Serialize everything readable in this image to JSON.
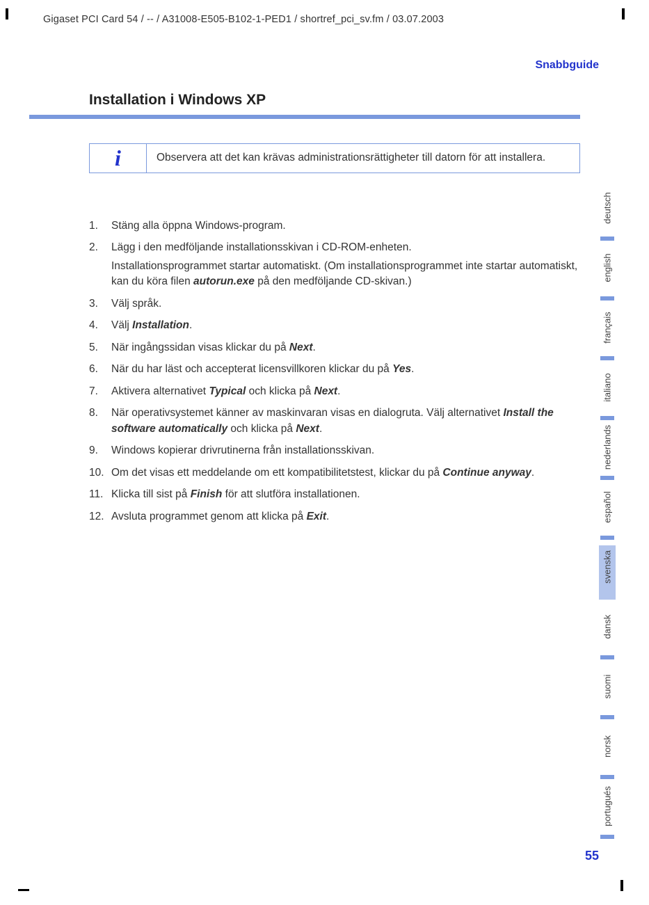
{
  "header": {
    "line": "Gigaset PCI Card 54 / -- / A31008-E505-B102-1-PED1 / shortref_pci_sv.fm / 03.07.2003"
  },
  "doc_title": "Snabbguide",
  "section_heading": "Installation i Windows XP",
  "info": {
    "icon": "i",
    "text": "Observera att det kan krävas administrationsrättigheter till datorn för att installera."
  },
  "steps": [
    {
      "num": "1.",
      "parts": [
        {
          "t": "Stäng alla öppna Windows-program."
        }
      ]
    },
    {
      "num": "2.",
      "parts": [
        {
          "t": "Lägg i den medföljande installationsskivan i CD-ROM-enheten."
        },
        {
          "rich": [
            {
              "t": "Installationsprogrammet startar automatiskt. (Om installationsprogrammet inte startar automatiskt, kan du köra filen "
            },
            {
              "t": "autorun.exe",
              "bi": true
            },
            {
              "t": " på den medföljande CD-skivan.)"
            }
          ]
        }
      ]
    },
    {
      "num": "3.",
      "parts": [
        {
          "t": "Välj språk."
        }
      ]
    },
    {
      "num": "4.",
      "parts": [
        {
          "rich": [
            {
              "t": "Välj "
            },
            {
              "t": "Installation",
              "bi": true
            },
            {
              "t": "."
            }
          ]
        }
      ]
    },
    {
      "num": "5.",
      "parts": [
        {
          "rich": [
            {
              "t": "När ingångssidan visas klickar du på "
            },
            {
              "t": "Next",
              "bi": true
            },
            {
              "t": "."
            }
          ]
        }
      ]
    },
    {
      "num": "6.",
      "parts": [
        {
          "rich": [
            {
              "t": "När du har läst och accepterat licensvillkoren klickar du på "
            },
            {
              "t": "Yes",
              "bi": true
            },
            {
              "t": "."
            }
          ]
        }
      ]
    },
    {
      "num": "7.",
      "parts": [
        {
          "rich": [
            {
              "t": "Aktivera alternativet "
            },
            {
              "t": "Typical",
              "bi": true
            },
            {
              "t": " och klicka på "
            },
            {
              "t": "Next",
              "bi": true
            },
            {
              "t": "."
            }
          ]
        }
      ]
    },
    {
      "num": "8.",
      "parts": [
        {
          "rich": [
            {
              "t": "När operativsystemet känner av maskinvaran visas en dialogruta. Välj alternativet "
            },
            {
              "t": "Install the software automatically",
              "bi": true
            },
            {
              "t": " och klicka på "
            },
            {
              "t": "Next",
              "bi": true
            },
            {
              "t": "."
            }
          ]
        }
      ]
    },
    {
      "num": "9.",
      "parts": [
        {
          "t": "Windows kopierar drivrutinerna från installationsskivan."
        }
      ]
    },
    {
      "num": "10.",
      "parts": [
        {
          "rich": [
            {
              "t": "Om det visas ett meddelande om ett kompatibilitetstest, klickar du på "
            },
            {
              "t": "Continue anyway",
              "bi": true
            },
            {
              "t": "."
            }
          ]
        }
      ]
    },
    {
      "num": "11.",
      "parts": [
        {
          "rich": [
            {
              "t": "Klicka till sist på "
            },
            {
              "t": "Finish",
              "bi": true
            },
            {
              "t": " för att slutföra installationen."
            }
          ]
        }
      ]
    },
    {
      "num": "12.",
      "parts": [
        {
          "rich": [
            {
              "t": "Avsluta programmet genom att klicka på "
            },
            {
              "t": "Exit",
              "bi": true
            },
            {
              "t": "."
            }
          ]
        }
      ]
    }
  ],
  "langs": [
    {
      "label": "deutsch",
      "active": false
    },
    {
      "label": "english",
      "active": false
    },
    {
      "label": "français",
      "active": false
    },
    {
      "label": "italiano",
      "active": false
    },
    {
      "label": "nederlands",
      "active": false
    },
    {
      "label": "español",
      "active": false
    },
    {
      "label": "svenska",
      "active": true
    },
    {
      "label": "dansk",
      "active": false
    },
    {
      "label": "suomi",
      "active": false
    },
    {
      "label": "norsk",
      "active": false
    },
    {
      "label": "portugués",
      "active": false
    }
  ],
  "page_number": "55",
  "colors": {
    "accent_blue": "#2233cc",
    "bar_blue": "#7a99dd",
    "active_tab_bg": "#b3c5ec",
    "text": "#333333"
  }
}
